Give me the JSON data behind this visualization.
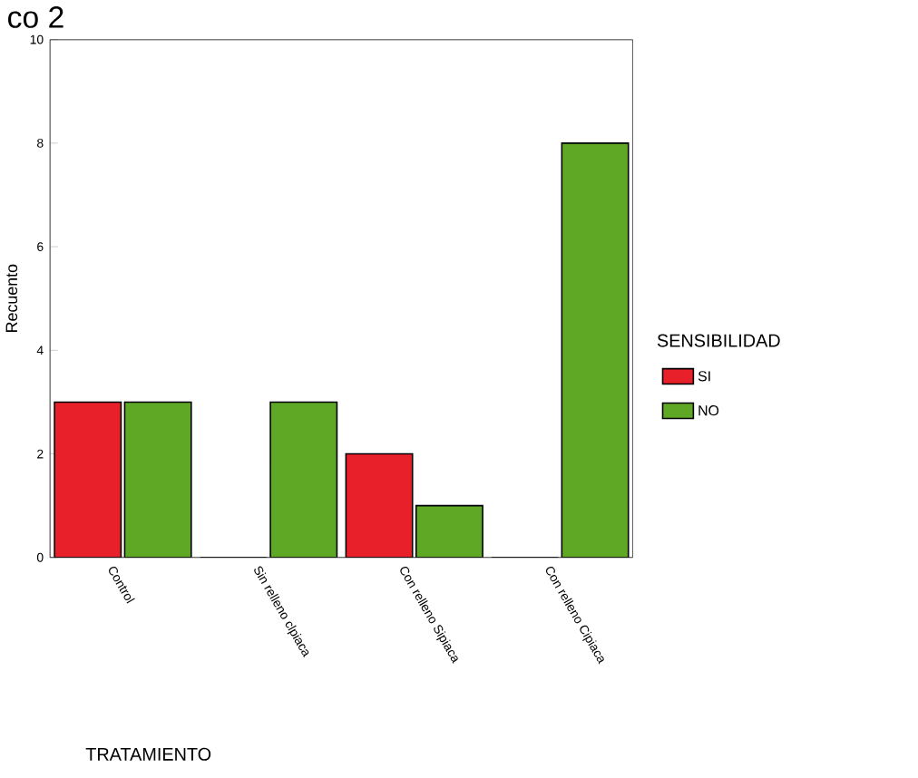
{
  "chart_data": {
    "type": "bar",
    "title": "co 2",
    "xlabel": "TRATAMIENTO",
    "ylabel": "Recuento",
    "legend_title": "SENSIBILIDAD",
    "categories": [
      "Control",
      "Sin relleno clpiaca",
      "Con relleno Sipiaca",
      "Con relleno Cipiaca"
    ],
    "series": [
      {
        "name": "SI",
        "color": "#e8202a",
        "values": [
          3,
          0,
          2,
          0
        ]
      },
      {
        "name": "NO",
        "color": "#5fa826",
        "values": [
          3,
          3,
          1,
          8
        ]
      }
    ],
    "ylim": [
      0,
      10
    ],
    "yticks": [
      0,
      2,
      4,
      6,
      8,
      10
    ],
    "legend": "right"
  }
}
